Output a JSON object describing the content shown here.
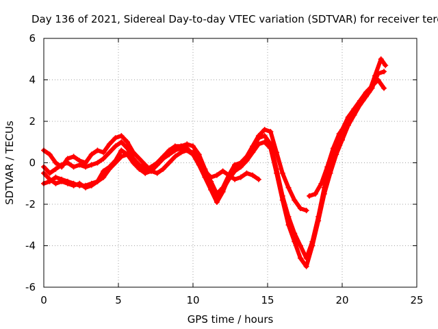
{
  "chart_data": {
    "type": "line",
    "title": "Day 136 of 2021, Sidereal Day-to-day VTEC variation (SDTVAR) for receiver terc",
    "xlabel": "GPS time / hours",
    "ylabel": "SDTVAR / TECUs",
    "xlim": [
      0,
      25
    ],
    "ylim": [
      -6,
      6
    ],
    "xticks": [
      0,
      5,
      10,
      15,
      20,
      25
    ],
    "yticks": [
      -6,
      -4,
      -2,
      0,
      2,
      4,
      6
    ],
    "grid": true,
    "marker_color": "#ff0000",
    "series": [
      {
        "name": "trace-1",
        "x": [
          0.0,
          0.4,
          0.8,
          1.2,
          1.6,
          2.0,
          2.4,
          2.8,
          3.2,
          3.6,
          4.0,
          4.4,
          4.8,
          5.2,
          5.6,
          6.0,
          6.4,
          6.8,
          7.2,
          7.6,
          8.0,
          8.4,
          8.8,
          9.2,
          9.6,
          10.0,
          10.4,
          10.8,
          11.2,
          11.6,
          12.0,
          12.4,
          12.8,
          13.2,
          13.6,
          14.0,
          14.4
        ],
        "y": [
          0.6,
          0.4,
          0.0,
          -0.2,
          0.2,
          0.3,
          0.1,
          0.0,
          0.4,
          0.6,
          0.5,
          0.9,
          1.2,
          1.3,
          1.0,
          0.5,
          0.2,
          -0.1,
          -0.4,
          -0.5,
          -0.3,
          0.0,
          0.3,
          0.5,
          0.6,
          0.4,
          0.0,
          -0.4,
          -0.7,
          -0.6,
          -0.4,
          -0.6,
          -0.8,
          -0.7,
          -0.5,
          -0.6,
          -0.8
        ]
      },
      {
        "name": "trace-2",
        "x": [
          0.0,
          0.4,
          0.8,
          1.2,
          1.6,
          2.0,
          2.4,
          2.8,
          3.2,
          3.6,
          4.0,
          4.4,
          4.8,
          5.2,
          5.6,
          6.0,
          6.4,
          6.8,
          7.2,
          7.6,
          8.0,
          8.4,
          8.8,
          9.2,
          9.6,
          10.0,
          10.4,
          10.8,
          11.2,
          11.6,
          12.0,
          12.4,
          12.8,
          13.2,
          13.6,
          14.0,
          14.4,
          14.8,
          15.2,
          15.6,
          16.0,
          16.4,
          16.8,
          17.2,
          17.6
        ],
        "y": [
          -0.2,
          -0.5,
          -0.3,
          -0.1,
          0.0,
          -0.2,
          -0.1,
          -0.2,
          -0.1,
          0.0,
          0.2,
          0.5,
          0.8,
          1.0,
          0.7,
          0.2,
          -0.2,
          -0.5,
          -0.4,
          -0.1,
          0.2,
          0.5,
          0.7,
          0.8,
          0.9,
          0.8,
          0.4,
          -0.3,
          -0.9,
          -1.5,
          -1.2,
          -0.6,
          -0.1,
          0.0,
          0.3,
          0.8,
          1.3,
          1.6,
          1.5,
          0.5,
          -0.5,
          -1.2,
          -1.8,
          -2.2,
          -2.3
        ]
      },
      {
        "name": "trace-3",
        "x": [
          0.0,
          0.4,
          0.8,
          1.2,
          1.6,
          2.0,
          2.4,
          2.8,
          3.2,
          3.6,
          4.0,
          4.4,
          4.8,
          5.2,
          5.6,
          6.0,
          6.4,
          6.8,
          7.2,
          7.6,
          8.0,
          8.4,
          8.8,
          9.2,
          9.6,
          10.0,
          10.4,
          10.8,
          11.2,
          11.6,
          12.0,
          12.4,
          12.8,
          13.2,
          13.6,
          14.0,
          14.4,
          14.8,
          15.2,
          15.6,
          16.0,
          16.4,
          16.8,
          17.2,
          17.6,
          18.0,
          18.4,
          18.8,
          19.2,
          19.6,
          20.0,
          20.4,
          20.8,
          21.2,
          21.6,
          22.0,
          22.4,
          22.8
        ],
        "y": [
          -1.0,
          -0.9,
          -0.7,
          -0.8,
          -0.9,
          -1.0,
          -1.1,
          -1.1,
          -1.0,
          -0.9,
          -0.7,
          -0.3,
          0.0,
          0.3,
          0.4,
          0.2,
          -0.1,
          -0.3,
          -0.2,
          0.0,
          0.3,
          0.6,
          0.8,
          0.8,
          0.7,
          0.4,
          -0.1,
          -0.7,
          -1.3,
          -1.9,
          -1.4,
          -0.7,
          -0.3,
          -0.2,
          0.2,
          0.7,
          1.2,
          1.3,
          0.9,
          -0.3,
          -1.6,
          -2.6,
          -3.4,
          -4.0,
          -4.6,
          -3.8,
          -2.6,
          -1.2,
          0.0,
          0.9,
          1.6,
          2.2,
          2.6,
          3.0,
          3.4,
          3.7,
          4.0,
          3.6
        ]
      },
      {
        "name": "trace-4",
        "x": [
          0.0,
          0.4,
          0.8,
          1.2,
          1.6,
          2.0,
          2.4,
          2.8,
          3.2,
          3.6,
          4.0,
          4.4,
          4.8,
          5.2,
          5.6,
          6.0,
          6.4,
          6.8,
          7.2,
          7.6,
          8.0,
          8.4,
          8.8,
          9.2,
          9.6,
          10.0,
          10.4,
          10.8,
          11.2,
          11.6,
          12.0,
          12.4,
          12.8,
          13.2,
          13.6,
          14.0,
          14.4,
          14.8,
          15.2,
          15.6,
          16.0,
          16.4,
          16.8,
          17.2,
          17.6,
          18.0,
          18.4,
          18.8,
          19.2,
          19.6,
          20.0,
          20.4,
          20.8,
          21.2,
          21.6,
          22.0,
          22.4,
          22.8
        ],
        "y": [
          -0.5,
          -0.8,
          -1.0,
          -0.9,
          -1.0,
          -1.1,
          -1.0,
          -1.2,
          -1.1,
          -0.9,
          -0.4,
          -0.2,
          0.1,
          0.6,
          0.4,
          0.0,
          -0.3,
          -0.5,
          -0.3,
          -0.1,
          0.2,
          0.4,
          0.6,
          0.7,
          0.6,
          0.5,
          0.1,
          -0.5,
          -1.1,
          -1.7,
          -1.3,
          -0.8,
          -0.4,
          -0.2,
          0.1,
          0.5,
          0.9,
          1.0,
          0.7,
          -0.5,
          -1.8,
          -3.0,
          -3.8,
          -4.6,
          -5.0,
          -4.0,
          -2.8,
          -1.5,
          -0.5,
          0.4,
          1.1,
          1.8,
          2.3,
          2.8,
          3.2,
          3.6,
          4.3,
          4.4
        ]
      },
      {
        "name": "trace-5",
        "x": [
          17.8,
          18.2,
          18.6,
          19.0,
          19.4,
          19.8,
          20.2,
          20.6,
          21.0,
          21.4,
          21.8,
          22.2,
          22.6,
          22.9
        ],
        "y": [
          -1.6,
          -1.5,
          -1.0,
          -0.2,
          0.7,
          1.4,
          1.8,
          2.2,
          2.6,
          3.0,
          3.4,
          4.2,
          5.0,
          4.7
        ]
      }
    ]
  }
}
